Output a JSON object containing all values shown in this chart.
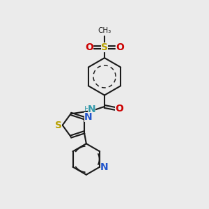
{
  "background_color": "#ebebeb",
  "bond_color": "#1a1a1a",
  "bond_width": 1.5,
  "figsize": [
    3.0,
    3.0
  ],
  "dpi": 100,
  "xlim": [
    0,
    10
  ],
  "ylim": [
    0,
    10
  ],
  "s_color": "#b8a000",
  "o_color": "#cc0000",
  "n_color": "#2255cc",
  "nh_color": "#3399aa",
  "text_color": "#1a1a1a"
}
